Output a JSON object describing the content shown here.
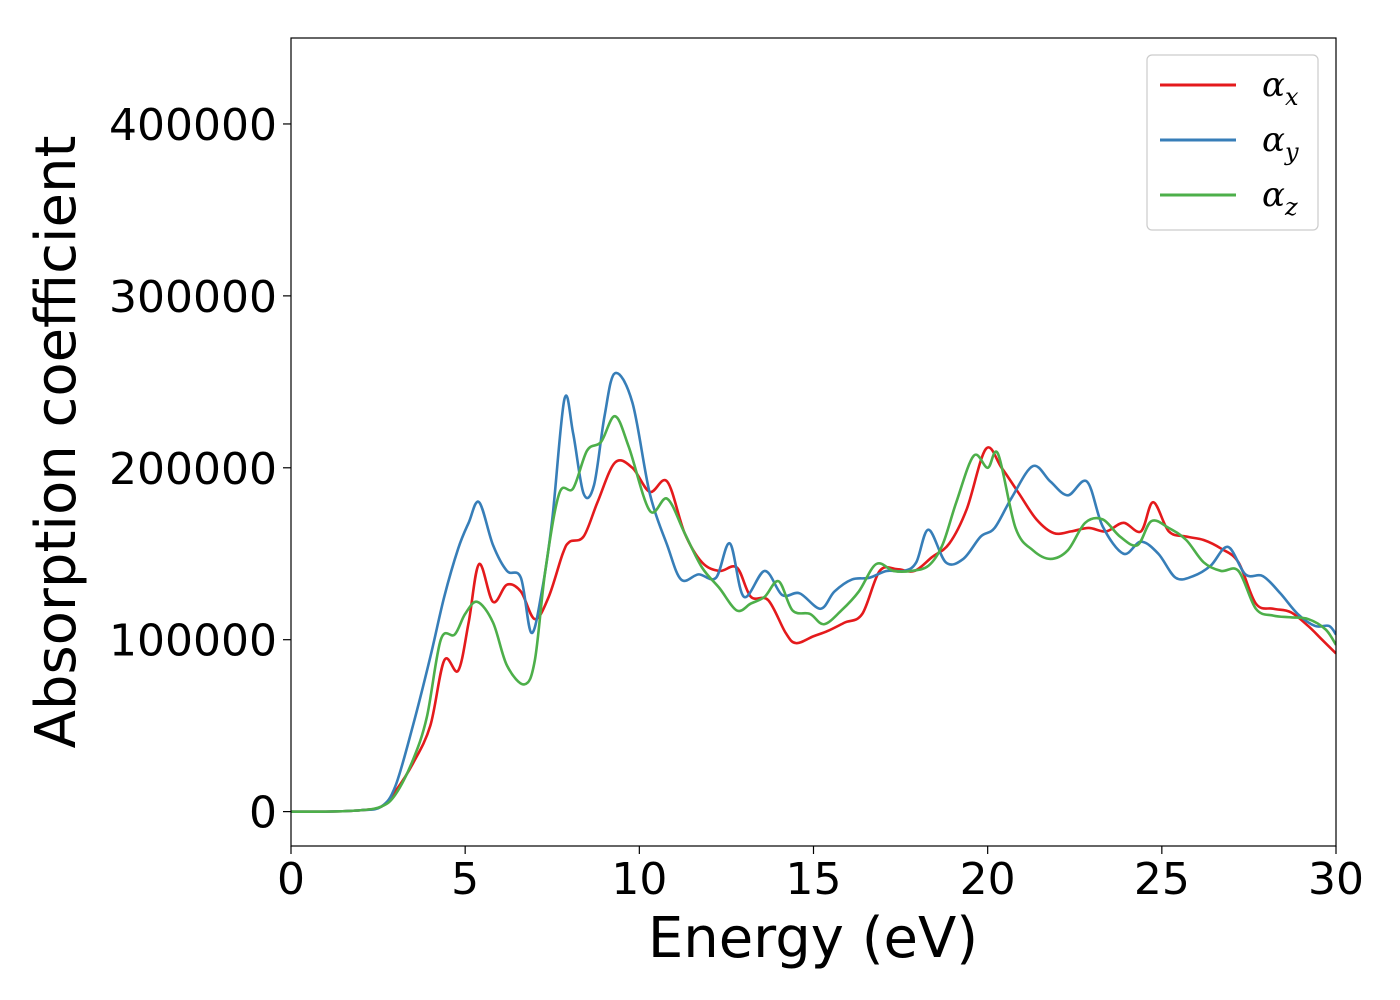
{
  "chart_data": {
    "type": "line",
    "title": "",
    "xlabel": "Energy (eV)",
    "ylabel": "Absorption coefficient",
    "xlim": [
      0,
      30
    ],
    "ylim": [
      -20000,
      450000
    ],
    "xticks": [
      0,
      5,
      10,
      15,
      20,
      25,
      30
    ],
    "yticks": [
      0,
      100000,
      200000,
      300000,
      400000
    ],
    "grid": false,
    "legend": {
      "position": "top-right"
    },
    "series": [
      {
        "name": "α",
        "subscript": "x",
        "color": "#e41a1c",
        "points": [
          [
            0,
            0
          ],
          [
            1,
            0
          ],
          [
            2,
            800
          ],
          [
            2.6,
            3000
          ],
          [
            3,
            12000
          ],
          [
            3.5,
            28000
          ],
          [
            4,
            50000
          ],
          [
            4.4,
            88000
          ],
          [
            4.8,
            82000
          ],
          [
            5.1,
            110000
          ],
          [
            5.4,
            144000
          ],
          [
            5.8,
            122000
          ],
          [
            6.2,
            132000
          ],
          [
            6.6,
            128000
          ],
          [
            7,
            112000
          ],
          [
            7.4,
            125000
          ],
          [
            7.8,
            150000
          ],
          [
            8,
            157000
          ],
          [
            8.4,
            160000
          ],
          [
            8.8,
            180000
          ],
          [
            9.3,
            203000
          ],
          [
            9.8,
            200000
          ],
          [
            10.3,
            186000
          ],
          [
            10.8,
            192000
          ],
          [
            11.3,
            162000
          ],
          [
            11.8,
            145000
          ],
          [
            12.3,
            140000
          ],
          [
            12.8,
            142000
          ],
          [
            13.2,
            125000
          ],
          [
            13.7,
            123000
          ],
          [
            14.2,
            104000
          ],
          [
            14.5,
            98000
          ],
          [
            15,
            102000
          ],
          [
            15.4,
            105000
          ],
          [
            15.9,
            110000
          ],
          [
            16.4,
            115000
          ],
          [
            16.9,
            140000
          ],
          [
            17.4,
            141000
          ],
          [
            17.9,
            140000
          ],
          [
            18.4,
            148000
          ],
          [
            18.9,
            156000
          ],
          [
            19.4,
            176000
          ],
          [
            19.95,
            211000
          ],
          [
            20.4,
            200000
          ],
          [
            20.9,
            185000
          ],
          [
            21.4,
            170000
          ],
          [
            21.9,
            162000
          ],
          [
            22.4,
            163000
          ],
          [
            22.9,
            165000
          ],
          [
            23.4,
            163000
          ],
          [
            23.9,
            168000
          ],
          [
            24.4,
            163000
          ],
          [
            24.75,
            180000
          ],
          [
            25.2,
            163000
          ],
          [
            25.7,
            160000
          ],
          [
            26.2,
            158000
          ],
          [
            26.7,
            153000
          ],
          [
            27.2,
            145000
          ],
          [
            27.7,
            121000
          ],
          [
            28.2,
            118000
          ],
          [
            28.7,
            116000
          ],
          [
            29.2,
            108000
          ],
          [
            29.6,
            100000
          ],
          [
            30,
            92000
          ]
        ]
      },
      {
        "name": "α",
        "subscript": "y",
        "color": "#377eb8",
        "points": [
          [
            0,
            0
          ],
          [
            1,
            0
          ],
          [
            2,
            800
          ],
          [
            2.6,
            3000
          ],
          [
            3,
            15000
          ],
          [
            3.5,
            50000
          ],
          [
            4,
            90000
          ],
          [
            4.4,
            125000
          ],
          [
            4.8,
            153000
          ],
          [
            5.1,
            168000
          ],
          [
            5.4,
            180000
          ],
          [
            5.8,
            155000
          ],
          [
            6.2,
            140000
          ],
          [
            6.6,
            136000
          ],
          [
            6.9,
            104000
          ],
          [
            7.2,
            128000
          ],
          [
            7.5,
            170000
          ],
          [
            7.85,
            240000
          ],
          [
            8.1,
            220000
          ],
          [
            8.4,
            185000
          ],
          [
            8.7,
            190000
          ],
          [
            9,
            230000
          ],
          [
            9.3,
            255000
          ],
          [
            9.8,
            238000
          ],
          [
            10.3,
            185000
          ],
          [
            10.8,
            155000
          ],
          [
            11.2,
            135000
          ],
          [
            11.7,
            138000
          ],
          [
            12.2,
            136000
          ],
          [
            12.6,
            156000
          ],
          [
            13,
            125000
          ],
          [
            13.6,
            140000
          ],
          [
            14.1,
            126000
          ],
          [
            14.6,
            127000
          ],
          [
            15.2,
            118000
          ],
          [
            15.6,
            128000
          ],
          [
            16.1,
            135000
          ],
          [
            16.6,
            136000
          ],
          [
            17.1,
            140000
          ],
          [
            17.6,
            140000
          ],
          [
            17.95,
            145000
          ],
          [
            18.3,
            164000
          ],
          [
            18.8,
            145000
          ],
          [
            19.3,
            147000
          ],
          [
            19.8,
            160000
          ],
          [
            20.2,
            165000
          ],
          [
            20.7,
            183000
          ],
          [
            21.3,
            201000
          ],
          [
            21.8,
            192000
          ],
          [
            22.3,
            184000
          ],
          [
            22.85,
            192000
          ],
          [
            23.3,
            166000
          ],
          [
            23.9,
            150000
          ],
          [
            24.4,
            157000
          ],
          [
            24.9,
            150000
          ],
          [
            25.4,
            136000
          ],
          [
            25.9,
            137000
          ],
          [
            26.4,
            143000
          ],
          [
            26.9,
            154000
          ],
          [
            27.4,
            138000
          ],
          [
            27.9,
            137000
          ],
          [
            28.4,
            127000
          ],
          [
            28.9,
            115000
          ],
          [
            29.4,
            108000
          ],
          [
            29.8,
            108000
          ],
          [
            30,
            103000
          ]
        ]
      },
      {
        "name": "α",
        "subscript": "z",
        "color": "#4daf4a",
        "points": [
          [
            0,
            0
          ],
          [
            1,
            0
          ],
          [
            2,
            800
          ],
          [
            2.6,
            3000
          ],
          [
            3,
            10000
          ],
          [
            3.5,
            30000
          ],
          [
            3.9,
            55000
          ],
          [
            4.3,
            100000
          ],
          [
            4.7,
            103000
          ],
          [
            5,
            115000
          ],
          [
            5.35,
            122000
          ],
          [
            5.8,
            110000
          ],
          [
            6.2,
            85000
          ],
          [
            6.7,
            74000
          ],
          [
            7,
            88000
          ],
          [
            7.3,
            140000
          ],
          [
            7.7,
            185000
          ],
          [
            8.1,
            188000
          ],
          [
            8.5,
            210000
          ],
          [
            8.9,
            215000
          ],
          [
            9.3,
            230000
          ],
          [
            9.7,
            212000
          ],
          [
            10.3,
            175000
          ],
          [
            10.8,
            182000
          ],
          [
            11.3,
            162000
          ],
          [
            11.8,
            142000
          ],
          [
            12.3,
            130000
          ],
          [
            12.8,
            117000
          ],
          [
            13.2,
            121000
          ],
          [
            13.6,
            125000
          ],
          [
            14,
            134000
          ],
          [
            14.4,
            117000
          ],
          [
            14.9,
            115000
          ],
          [
            15.3,
            109000
          ],
          [
            15.8,
            117000
          ],
          [
            16.3,
            128000
          ],
          [
            16.8,
            144000
          ],
          [
            17.3,
            140000
          ],
          [
            17.8,
            140000
          ],
          [
            18.3,
            143000
          ],
          [
            18.7,
            155000
          ],
          [
            19.1,
            180000
          ],
          [
            19.6,
            207000
          ],
          [
            20,
            200000
          ],
          [
            20.3,
            208000
          ],
          [
            20.8,
            165000
          ],
          [
            21.3,
            152000
          ],
          [
            21.8,
            147000
          ],
          [
            22.3,
            152000
          ],
          [
            22.8,
            168000
          ],
          [
            23.3,
            170000
          ],
          [
            23.8,
            160000
          ],
          [
            24.3,
            155000
          ],
          [
            24.7,
            169000
          ],
          [
            25.2,
            165000
          ],
          [
            25.7,
            158000
          ],
          [
            26.2,
            145000
          ],
          [
            26.7,
            140000
          ],
          [
            27.2,
            140000
          ],
          [
            27.7,
            118000
          ],
          [
            28.2,
            114000
          ],
          [
            28.7,
            113000
          ],
          [
            29.2,
            112000
          ],
          [
            29.7,
            106000
          ],
          [
            30,
            97000
          ]
        ]
      }
    ]
  }
}
